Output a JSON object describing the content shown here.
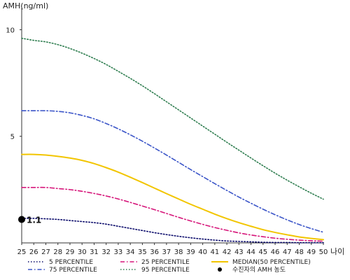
{
  "chart_data": {
    "type": "line",
    "ylabel": "AMH(ng/ml)",
    "xlabel": "나이",
    "x": [
      25,
      26,
      27,
      28,
      29,
      30,
      31,
      32,
      33,
      34,
      35,
      36,
      37,
      38,
      39,
      40,
      41,
      42,
      43,
      44,
      45,
      46,
      47,
      48,
      49,
      50
    ],
    "x_tick_labels": [
      "25",
      "26",
      "27",
      "28",
      "29",
      "30",
      "31",
      "32",
      "33",
      "34",
      "35",
      "36",
      "37",
      "38",
      "39",
      "40",
      "41",
      "42",
      "43",
      "44",
      "45",
      "46",
      "47",
      "48",
      "49",
      "50"
    ],
    "y_ticks": [
      5,
      10
    ],
    "y_tick_labels": [
      "5",
      "10"
    ],
    "ylim": [
      0,
      11
    ],
    "xlim": [
      25,
      50
    ],
    "grid": false,
    "legend_position": "bottom",
    "series": [
      {
        "name": "5 PERCENTILE",
        "color": "#0b0b6b",
        "dash": "dot",
        "values": [
          1.15,
          1.15,
          1.13,
          1.1,
          1.05,
          1.0,
          0.95,
          0.88,
          0.78,
          0.68,
          0.58,
          0.48,
          0.39,
          0.31,
          0.24,
          0.18,
          0.13,
          0.09,
          0.07,
          0.05,
          0.03,
          0.02,
          0.02,
          0.01,
          0.01,
          0.01
        ]
      },
      {
        "name": "25 PERCENTILE",
        "color": "#d6167a",
        "dash": "dashdot",
        "values": [
          2.6,
          2.6,
          2.6,
          2.55,
          2.5,
          2.42,
          2.32,
          2.2,
          2.06,
          1.9,
          1.73,
          1.56,
          1.38,
          1.2,
          1.03,
          0.87,
          0.72,
          0.59,
          0.47,
          0.37,
          0.29,
          0.22,
          0.17,
          0.13,
          0.1,
          0.08
        ]
      },
      {
        "name": "MEDIAN(50 PERCENTILE)",
        "color": "#f2c500",
        "dash": "solid",
        "values": [
          4.15,
          4.15,
          4.12,
          4.06,
          3.98,
          3.87,
          3.72,
          3.53,
          3.32,
          3.08,
          2.83,
          2.57,
          2.31,
          2.06,
          1.81,
          1.58,
          1.35,
          1.14,
          0.95,
          0.78,
          0.62,
          0.49,
          0.38,
          0.28,
          0.21,
          0.15
        ]
      },
      {
        "name": "75 PERCENTILE",
        "color": "#3b55c8",
        "dash": "dashdot",
        "values": [
          6.2,
          6.2,
          6.2,
          6.17,
          6.1,
          5.98,
          5.82,
          5.6,
          5.35,
          5.07,
          4.77,
          4.45,
          4.12,
          3.78,
          3.44,
          3.11,
          2.78,
          2.46,
          2.15,
          1.86,
          1.58,
          1.32,
          1.08,
          0.86,
          0.67,
          0.5
        ]
      },
      {
        "name": "95 PERCENTILE",
        "color": "#2e7d4f",
        "dash": "dot",
        "values": [
          9.6,
          9.5,
          9.43,
          9.3,
          9.12,
          8.9,
          8.65,
          8.37,
          8.05,
          7.72,
          7.37,
          7.0,
          6.62,
          6.24,
          5.86,
          5.48,
          5.1,
          4.72,
          4.35,
          3.98,
          3.62,
          3.27,
          2.94,
          2.63,
          2.33,
          2.05
        ]
      }
    ],
    "marker": {
      "name": "수진자의 AMH 농도",
      "x": 25,
      "y": 1.1,
      "label": "1.1",
      "color": "#000000"
    },
    "legend_columns": [
      [
        "5 PERCENTILE",
        "75 PERCENTILE"
      ],
      [
        "25 PERCENTILE",
        "95 PERCENTILE"
      ],
      [
        "MEDIAN(50 PERCENTILE)",
        "수진자의 AMH 농도"
      ]
    ]
  }
}
